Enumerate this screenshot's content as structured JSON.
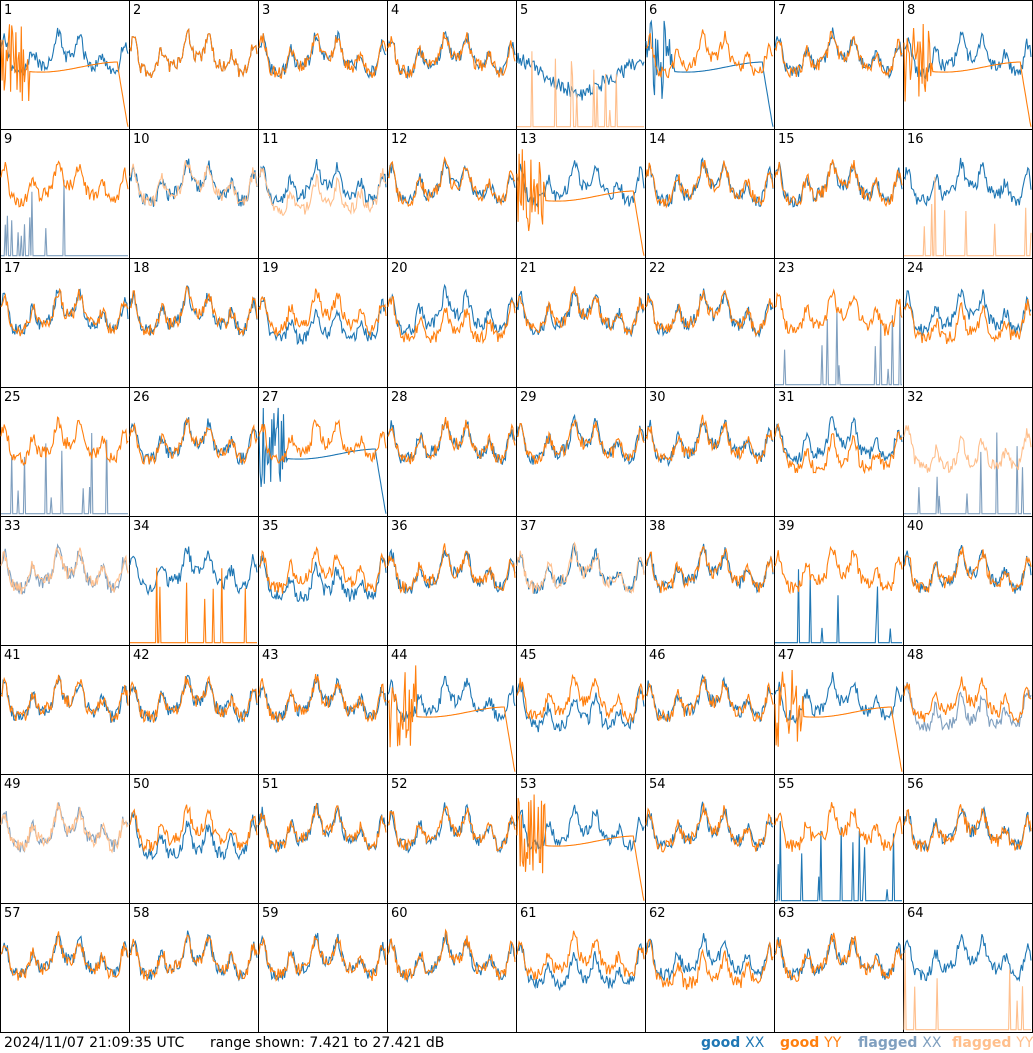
{
  "chart_data": {
    "type": "line",
    "grid": {
      "rows": 8,
      "cols": 8
    },
    "y_unit": "dB",
    "ylim": [
      7.421,
      27.421
    ],
    "legend": [
      {
        "name": "good",
        "pol": "XX",
        "color": "#1f77b4"
      },
      {
        "name": "good",
        "pol": "YY",
        "color": "#ff7f0e"
      },
      {
        "name": "flagged",
        "pol": "XX",
        "color": "#7f9fbf"
      },
      {
        "name": "flagged",
        "pol": "YY",
        "color": "#ffbf8c"
      }
    ],
    "legend_placement": "bottom-right",
    "panels": [
      {
        "id": "1",
        "xx": "good",
        "yy": "good",
        "xx_shape": "normal",
        "yy_shape": "rolloff"
      },
      {
        "id": "2",
        "xx": "good",
        "yy": "good",
        "xx_shape": "normal",
        "yy_shape": "normal"
      },
      {
        "id": "3",
        "xx": "good",
        "yy": "good",
        "xx_shape": "normal",
        "yy_shape": "normal"
      },
      {
        "id": "4",
        "xx": "good",
        "yy": "good",
        "xx_shape": "normal",
        "yy_shape": "normal"
      },
      {
        "id": "5",
        "xx": "good",
        "yy": "flagged",
        "xx_shape": "bowl",
        "yy_shape": "spikes"
      },
      {
        "id": "6",
        "xx": "good",
        "yy": "good",
        "xx_shape": "rolloff",
        "yy_shape": "normal"
      },
      {
        "id": "7",
        "xx": "good",
        "yy": "good",
        "xx_shape": "normal",
        "yy_shape": "normal"
      },
      {
        "id": "8",
        "xx": "good",
        "yy": "good",
        "xx_shape": "normal",
        "yy_shape": "rolloff"
      },
      {
        "id": "9",
        "xx": "flagged",
        "yy": "good",
        "xx_shape": "spikes",
        "yy_shape": "normal"
      },
      {
        "id": "10",
        "xx": "good",
        "yy": "flagged",
        "xx_shape": "normal",
        "yy_shape": "normal"
      },
      {
        "id": "11",
        "xx": "good",
        "yy": "flagged",
        "xx_shape": "normal",
        "yy_shape": "deep"
      },
      {
        "id": "12",
        "xx": "good",
        "yy": "good",
        "xx_shape": "normal",
        "yy_shape": "normal"
      },
      {
        "id": "13",
        "xx": "good",
        "yy": "good",
        "xx_shape": "normal",
        "yy_shape": "rolloff"
      },
      {
        "id": "14",
        "xx": "good",
        "yy": "good",
        "xx_shape": "normal",
        "yy_shape": "normal"
      },
      {
        "id": "15",
        "xx": "good",
        "yy": "good",
        "xx_shape": "normal",
        "yy_shape": "normal"
      },
      {
        "id": "16",
        "xx": "good",
        "yy": "flagged",
        "xx_shape": "normal",
        "yy_shape": "spikes"
      },
      {
        "id": "17",
        "xx": "good",
        "yy": "good",
        "xx_shape": "normal",
        "yy_shape": "normal"
      },
      {
        "id": "18",
        "xx": "good",
        "yy": "good",
        "xx_shape": "normal",
        "yy_shape": "normal"
      },
      {
        "id": "19",
        "xx": "good",
        "yy": "good",
        "xx_shape": "deep",
        "yy_shape": "normal"
      },
      {
        "id": "20",
        "xx": "good",
        "yy": "good",
        "xx_shape": "normal",
        "yy_shape": "deep"
      },
      {
        "id": "21",
        "xx": "good",
        "yy": "good",
        "xx_shape": "normal",
        "yy_shape": "normal"
      },
      {
        "id": "22",
        "xx": "good",
        "yy": "good",
        "xx_shape": "normal",
        "yy_shape": "normal"
      },
      {
        "id": "23",
        "xx": "flagged",
        "yy": "good",
        "xx_shape": "spikes",
        "yy_shape": "normal"
      },
      {
        "id": "24",
        "xx": "good",
        "yy": "good",
        "xx_shape": "normal",
        "yy_shape": "deep"
      },
      {
        "id": "25",
        "xx": "flagged",
        "yy": "good",
        "xx_shape": "spikes",
        "yy_shape": "normal"
      },
      {
        "id": "26",
        "xx": "good",
        "yy": "good",
        "xx_shape": "normal",
        "yy_shape": "normal"
      },
      {
        "id": "27",
        "xx": "good",
        "yy": "good",
        "xx_shape": "rolloff",
        "yy_shape": "normal"
      },
      {
        "id": "28",
        "xx": "good",
        "yy": "good",
        "xx_shape": "normal",
        "yy_shape": "normal"
      },
      {
        "id": "29",
        "xx": "good",
        "yy": "good",
        "xx_shape": "normal",
        "yy_shape": "normal"
      },
      {
        "id": "30",
        "xx": "good",
        "yy": "good",
        "xx_shape": "normal",
        "yy_shape": "normal"
      },
      {
        "id": "31",
        "xx": "good",
        "yy": "good",
        "xx_shape": "normal",
        "yy_shape": "deep"
      },
      {
        "id": "32",
        "xx": "flagged",
        "yy": "flagged",
        "xx_shape": "spikes",
        "yy_shape": "deep"
      },
      {
        "id": "33",
        "xx": "flagged",
        "yy": "flagged",
        "xx_shape": "normal",
        "yy_shape": "normal"
      },
      {
        "id": "34",
        "xx": "good",
        "yy": "good",
        "xx_shape": "normal",
        "yy_shape": "spikes"
      },
      {
        "id": "35",
        "xx": "good",
        "yy": "good",
        "xx_shape": "deep",
        "yy_shape": "normal"
      },
      {
        "id": "36",
        "xx": "good",
        "yy": "good",
        "xx_shape": "normal",
        "yy_shape": "normal"
      },
      {
        "id": "37",
        "xx": "good",
        "yy": "flagged",
        "xx_shape": "normal",
        "yy_shape": "normal"
      },
      {
        "id": "38",
        "xx": "good",
        "yy": "good",
        "xx_shape": "normal",
        "yy_shape": "normal"
      },
      {
        "id": "39",
        "xx": "good",
        "yy": "good",
        "xx_shape": "spikes",
        "yy_shape": "normal"
      },
      {
        "id": "40",
        "xx": "good",
        "yy": "good",
        "xx_shape": "normal",
        "yy_shape": "normal"
      },
      {
        "id": "41",
        "xx": "good",
        "yy": "good",
        "xx_shape": "normal",
        "yy_shape": "normal"
      },
      {
        "id": "42",
        "xx": "good",
        "yy": "good",
        "xx_shape": "normal",
        "yy_shape": "normal"
      },
      {
        "id": "43",
        "xx": "good",
        "yy": "good",
        "xx_shape": "normal",
        "yy_shape": "normal"
      },
      {
        "id": "44",
        "xx": "good",
        "yy": "good",
        "xx_shape": "normal",
        "yy_shape": "rolloff"
      },
      {
        "id": "45",
        "xx": "good",
        "yy": "good",
        "xx_shape": "deep",
        "yy_shape": "normal"
      },
      {
        "id": "46",
        "xx": "good",
        "yy": "good",
        "xx_shape": "normal",
        "yy_shape": "normal"
      },
      {
        "id": "47",
        "xx": "good",
        "yy": "good",
        "xx_shape": "normal",
        "yy_shape": "rolloff"
      },
      {
        "id": "48",
        "xx": "flagged",
        "yy": "good",
        "xx_shape": "deep",
        "yy_shape": "normal"
      },
      {
        "id": "49",
        "xx": "flagged",
        "yy": "flagged",
        "xx_shape": "normal",
        "yy_shape": "normal"
      },
      {
        "id": "50",
        "xx": "good",
        "yy": "good",
        "xx_shape": "deep",
        "yy_shape": "normal"
      },
      {
        "id": "51",
        "xx": "good",
        "yy": "good",
        "xx_shape": "normal",
        "yy_shape": "normal"
      },
      {
        "id": "52",
        "xx": "good",
        "yy": "good",
        "xx_shape": "normal",
        "yy_shape": "normal"
      },
      {
        "id": "53",
        "xx": "good",
        "yy": "good",
        "xx_shape": "normal",
        "yy_shape": "rolloff"
      },
      {
        "id": "54",
        "xx": "good",
        "yy": "good",
        "xx_shape": "normal",
        "yy_shape": "normal"
      },
      {
        "id": "55",
        "xx": "good",
        "yy": "good",
        "xx_shape": "spikes",
        "yy_shape": "normal"
      },
      {
        "id": "56",
        "xx": "good",
        "yy": "good",
        "xx_shape": "normal",
        "yy_shape": "normal"
      },
      {
        "id": "57",
        "xx": "good",
        "yy": "good",
        "xx_shape": "normal",
        "yy_shape": "normal"
      },
      {
        "id": "58",
        "xx": "good",
        "yy": "good",
        "xx_shape": "normal",
        "yy_shape": "normal"
      },
      {
        "id": "59",
        "xx": "good",
        "yy": "good",
        "xx_shape": "normal",
        "yy_shape": "normal"
      },
      {
        "id": "60",
        "xx": "good",
        "yy": "good",
        "xx_shape": "normal",
        "yy_shape": "normal"
      },
      {
        "id": "61",
        "xx": "good",
        "yy": "good",
        "xx_shape": "deep",
        "yy_shape": "normal"
      },
      {
        "id": "62",
        "xx": "good",
        "yy": "good",
        "xx_shape": "normal",
        "yy_shape": "deep"
      },
      {
        "id": "63",
        "xx": "good",
        "yy": "good",
        "xx_shape": "normal",
        "yy_shape": "normal"
      },
      {
        "id": "64",
        "xx": "good",
        "yy": "flagged",
        "xx_shape": "normal",
        "yy_shape": "spikes"
      }
    ]
  },
  "footer": {
    "timestamp": "2024/11/07 21:09:35 UTC",
    "range_text": "range shown: 7.421 to 27.421 dB"
  }
}
